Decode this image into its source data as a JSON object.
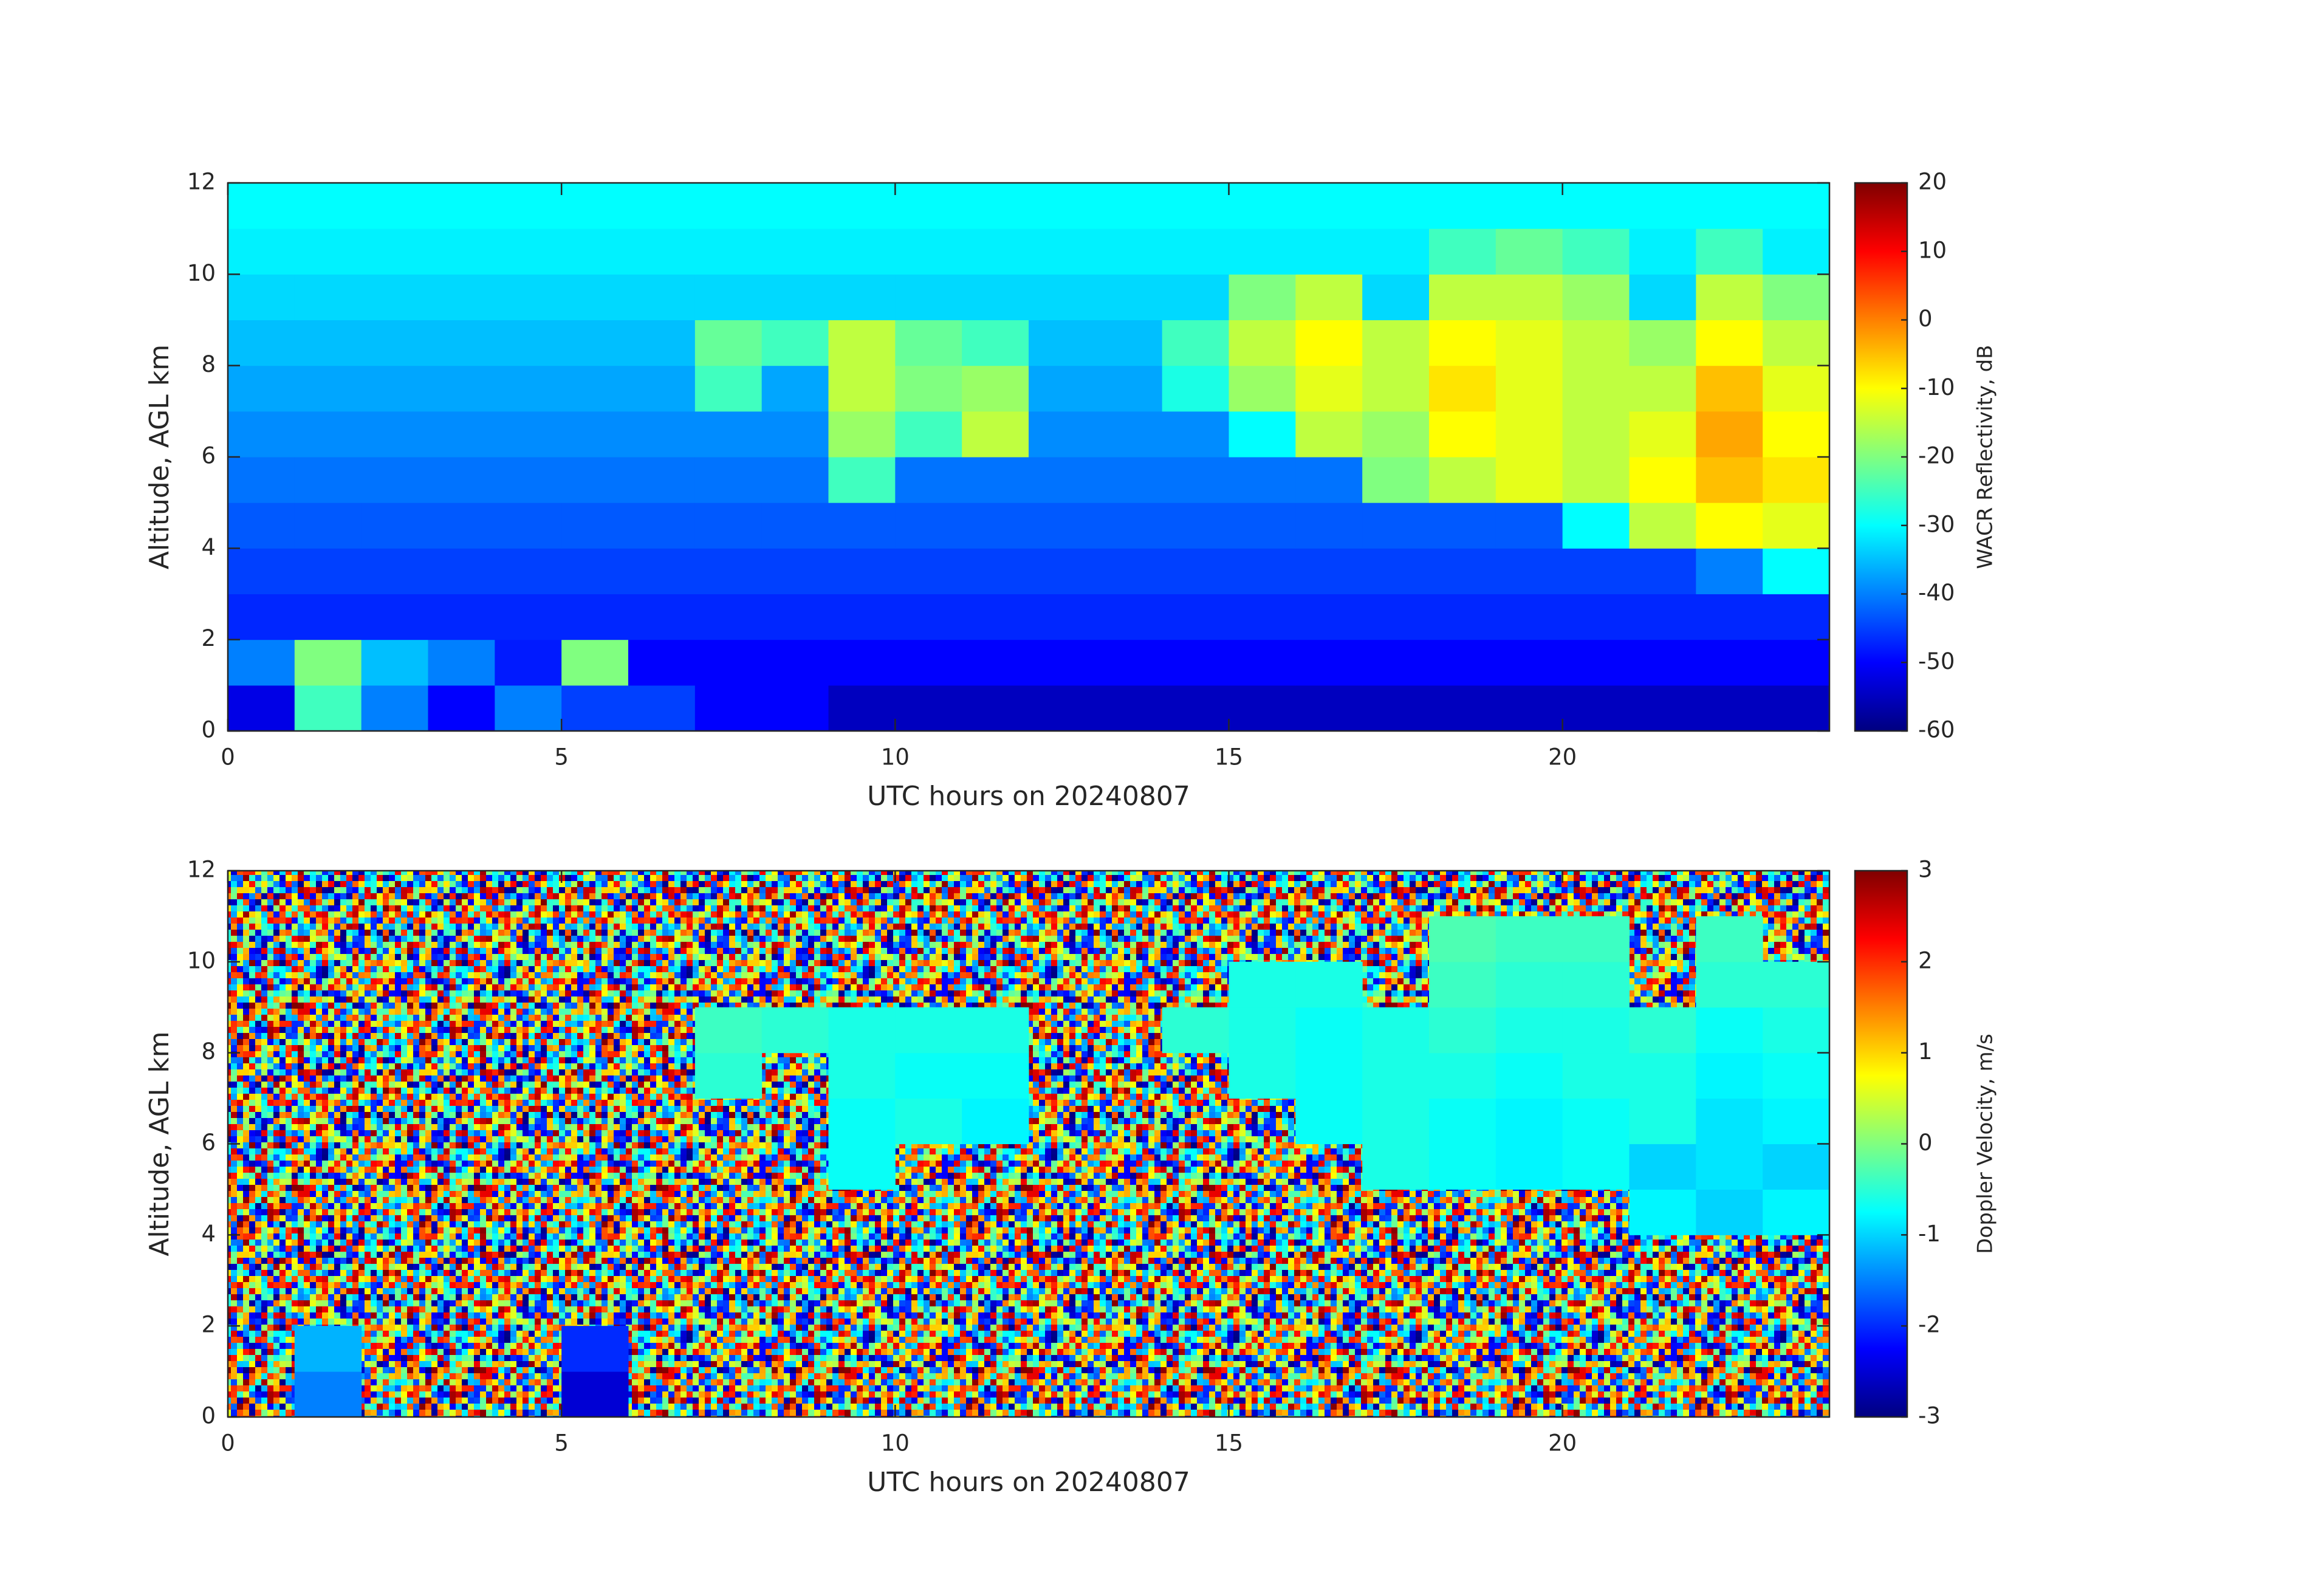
{
  "chart_data": [
    {
      "type": "heatmap",
      "xlabel": "UTC hours on 20240807",
      "ylabel": "Altitude, AGL km",
      "colorbar_label": "WACR Reflectivity, dB",
      "colormap": "jet",
      "x": [
        0.5,
        1.5,
        2.5,
        3.5,
        4.5,
        5.5,
        6.5,
        7.5,
        8.5,
        9.5,
        10.5,
        11.5,
        12.5,
        13.5,
        14.5,
        15.5,
        16.5,
        17.5,
        18.5,
        19.5,
        20.5,
        21.5,
        22.5,
        23.5
      ],
      "y": [
        0.5,
        1.5,
        2.5,
        3.5,
        4.5,
        5.5,
        6.5,
        7.5,
        8.5,
        9.5,
        10.5,
        11.5
      ],
      "z": [
        [
          -52,
          -25,
          -40,
          -50,
          -40,
          -45,
          -45,
          -50,
          -50,
          -55,
          -55,
          -55,
          -55,
          -55,
          -55,
          -55,
          -55,
          -55,
          -55,
          -55,
          -55,
          -55,
          -55,
          -55
        ],
        [
          -40,
          -20,
          -35,
          -40,
          -48,
          -20,
          -50,
          -50,
          -50,
          -50,
          -50,
          -50,
          -50,
          -50,
          -50,
          -50,
          -50,
          -50,
          -50,
          -50,
          -50,
          -50,
          -50,
          -50
        ],
        [
          -47,
          -47,
          -47,
          -47,
          -47,
          -47,
          -47,
          -47,
          -47,
          -47,
          -47,
          -47,
          -47,
          -47,
          -47,
          -47,
          -47,
          -47,
          -47,
          -47,
          -47,
          -47,
          -47,
          -47
        ],
        [
          -45,
          -45,
          -45,
          -45,
          -45,
          -45,
          -45,
          -45,
          -45,
          -45,
          -45,
          -45,
          -45,
          -45,
          -45,
          -45,
          -45,
          -45,
          -45,
          -45,
          -45,
          -45,
          -40,
          -30
        ],
        [
          -43,
          -43,
          -43,
          -43,
          -43,
          -43,
          -43,
          -43,
          -43,
          -43,
          -43,
          -43,
          -43,
          -43,
          -43,
          -43,
          -43,
          -43,
          -43,
          -43,
          -30,
          -15,
          -10,
          -12
        ],
        [
          -41,
          -41,
          -41,
          -41,
          -41,
          -41,
          -41,
          -41,
          -41,
          -25,
          -41,
          -41,
          -41,
          -41,
          -41,
          -41,
          -41,
          -20,
          -15,
          -12,
          -15,
          -10,
          -5,
          -8
        ],
        [
          -39,
          -39,
          -39,
          -39,
          -39,
          -39,
          -39,
          -39,
          -39,
          -18,
          -25,
          -15,
          -39,
          -39,
          -39,
          -30,
          -15,
          -18,
          -10,
          -12,
          -15,
          -12,
          -3,
          -10
        ],
        [
          -37,
          -37,
          -37,
          -37,
          -37,
          -37,
          -37,
          -25,
          -37,
          -15,
          -20,
          -18,
          -37,
          -37,
          -28,
          -18,
          -12,
          -15,
          -8,
          -12,
          -15,
          -15,
          -5,
          -12
        ],
        [
          -35,
          -35,
          -35,
          -35,
          -35,
          -35,
          -35,
          -22,
          -25,
          -15,
          -22,
          -25,
          -35,
          -35,
          -25,
          -15,
          -10,
          -15,
          -10,
          -12,
          -15,
          -18,
          -10,
          -15
        ],
        [
          -33,
          -33,
          -33,
          -33,
          -33,
          -33,
          -33,
          -33,
          -33,
          -33,
          -33,
          -33,
          -33,
          -33,
          -33,
          -20,
          -15,
          -33,
          -15,
          -15,
          -18,
          -33,
          -15,
          -20
        ],
        [
          -31,
          -31,
          -31,
          -31,
          -31,
          -31,
          -31,
          -31,
          -31,
          -31,
          -31,
          -31,
          -31,
          -31,
          -31,
          -31,
          -31,
          -31,
          -25,
          -22,
          -25,
          -31,
          -25,
          -31
        ],
        [
          -30,
          -30,
          -30,
          -30,
          -30,
          -30,
          -30,
          -30,
          -30,
          -30,
          -30,
          -30,
          -30,
          -30,
          -30,
          -30,
          -30,
          -30,
          -30,
          -30,
          -30,
          -30,
          -30,
          -30
        ]
      ],
      "xlim": [
        0,
        24
      ],
      "ylim": [
        0,
        12
      ],
      "xticks": [
        0,
        5,
        10,
        15,
        20
      ],
      "yticks": [
        0,
        2,
        4,
        6,
        8,
        10,
        12
      ],
      "clim": [
        -60,
        20
      ],
      "cticks": [
        -60,
        -50,
        -40,
        -30,
        -20,
        -10,
        0,
        10,
        20
      ]
    },
    {
      "type": "heatmap",
      "xlabel": "UTC hours on 20240807",
      "ylabel": "Altitude, AGL km",
      "colorbar_label": "Doppler Velocity, m/s",
      "colormap": "jet",
      "x": [
        0.5,
        1.5,
        2.5,
        3.5,
        4.5,
        5.5,
        6.5,
        7.5,
        8.5,
        9.5,
        10.5,
        11.5,
        12.5,
        13.5,
        14.5,
        15.5,
        16.5,
        17.5,
        18.5,
        19.5,
        20.5,
        21.5,
        22.5,
        23.5
      ],
      "y": [
        0.5,
        1.5,
        2.5,
        3.5,
        4.5,
        5.5,
        6.5,
        7.5,
        8.5,
        9.5,
        10.5,
        11.5
      ],
      "z": [
        [
          null,
          -1.5,
          null,
          null,
          null,
          -2.5,
          null,
          null,
          null,
          null,
          null,
          null,
          null,
          null,
          null,
          null,
          null,
          null,
          null,
          null,
          null,
          null,
          null,
          null
        ],
        [
          null,
          -1.2,
          null,
          null,
          null,
          -2.0,
          null,
          null,
          null,
          null,
          null,
          null,
          null,
          null,
          null,
          null,
          null,
          null,
          null,
          null,
          null,
          null,
          null,
          null
        ],
        [
          null,
          null,
          null,
          null,
          null,
          null,
          null,
          null,
          null,
          null,
          null,
          null,
          null,
          null,
          null,
          null,
          null,
          null,
          null,
          null,
          null,
          null,
          null,
          null
        ],
        [
          null,
          null,
          null,
          null,
          null,
          null,
          null,
          null,
          null,
          null,
          null,
          null,
          null,
          null,
          null,
          null,
          null,
          null,
          null,
          null,
          null,
          null,
          null,
          null
        ],
        [
          null,
          null,
          null,
          null,
          null,
          null,
          null,
          null,
          null,
          null,
          null,
          null,
          null,
          null,
          null,
          null,
          null,
          null,
          null,
          null,
          null,
          -0.8,
          -1.0,
          -0.8
        ],
        [
          null,
          null,
          null,
          null,
          null,
          null,
          null,
          null,
          null,
          -0.7,
          null,
          null,
          null,
          null,
          null,
          null,
          null,
          -0.6,
          -0.7,
          -0.8,
          -0.7,
          -1.0,
          -0.9,
          -1.0
        ],
        [
          null,
          null,
          null,
          null,
          null,
          null,
          null,
          null,
          null,
          -0.7,
          -0.6,
          -0.8,
          null,
          null,
          null,
          null,
          -0.7,
          -0.6,
          -0.7,
          -0.8,
          -0.7,
          -0.6,
          -0.9,
          -0.8
        ],
        [
          null,
          null,
          null,
          null,
          null,
          null,
          null,
          -0.5,
          null,
          -0.6,
          -0.7,
          -0.7,
          null,
          null,
          null,
          -0.6,
          -0.7,
          -0.6,
          -0.6,
          -0.7,
          -0.6,
          -0.6,
          -0.8,
          -0.7
        ],
        [
          null,
          null,
          null,
          null,
          null,
          null,
          null,
          -0.4,
          -0.5,
          -0.6,
          -0.6,
          -0.6,
          null,
          null,
          -0.5,
          -0.6,
          -0.7,
          -0.6,
          -0.5,
          -0.6,
          -0.6,
          -0.5,
          -0.7,
          -0.6
        ],
        [
          null,
          null,
          null,
          null,
          null,
          null,
          null,
          null,
          null,
          null,
          null,
          null,
          null,
          null,
          null,
          -0.6,
          -0.6,
          null,
          -0.4,
          -0.5,
          -0.5,
          null,
          -0.5,
          -0.5
        ],
        [
          null,
          null,
          null,
          null,
          null,
          null,
          null,
          null,
          null,
          null,
          null,
          null,
          null,
          null,
          null,
          null,
          null,
          null,
          -0.3,
          -0.4,
          -0.4,
          null,
          -0.4,
          null
        ],
        [
          null,
          null,
          null,
          null,
          null,
          null,
          null,
          null,
          null,
          null,
          null,
          null,
          null,
          null,
          null,
          null,
          null,
          null,
          null,
          null,
          null,
          null,
          null,
          null
        ]
      ],
      "xlim": [
        0,
        24
      ],
      "ylim": [
        0,
        12
      ],
      "xticks": [
        0,
        5,
        10,
        15,
        20
      ],
      "yticks": [
        0,
        2,
        4,
        6,
        8,
        10,
        12
      ],
      "clim": [
        -3,
        3
      ],
      "cticks": [
        -3,
        -2,
        -1,
        0,
        1,
        2,
        3
      ]
    }
  ]
}
